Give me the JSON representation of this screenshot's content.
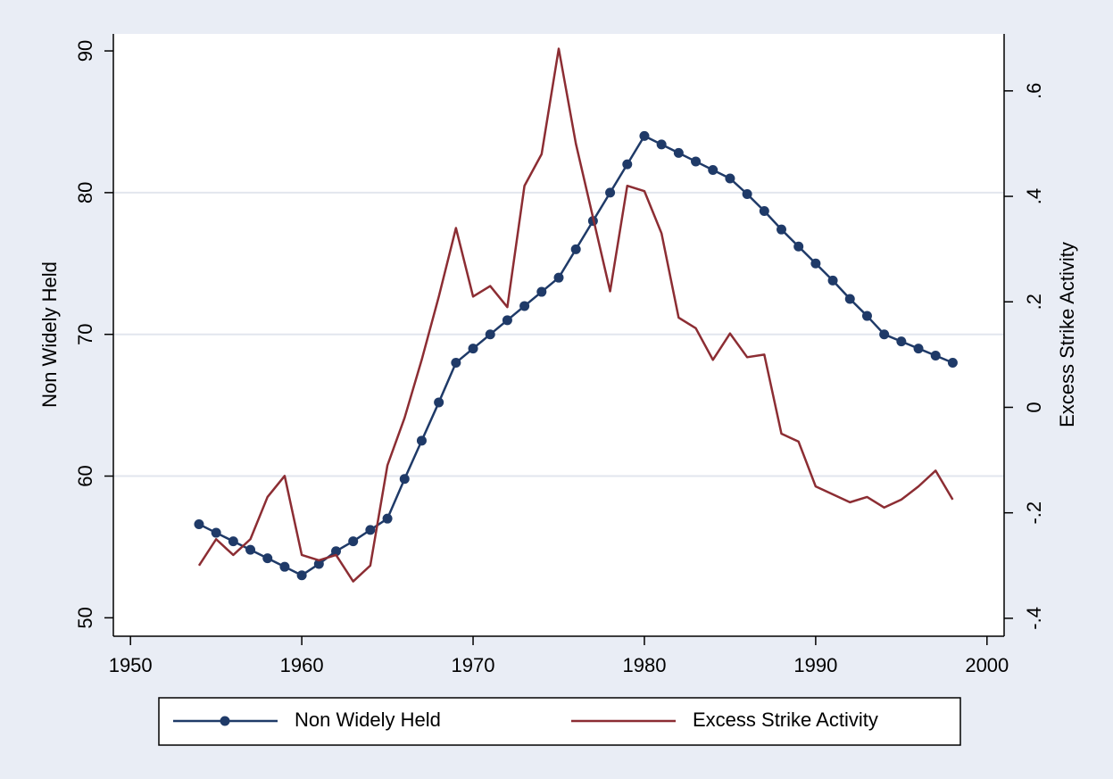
{
  "chart_data": {
    "type": "line",
    "x": [
      1954,
      1955,
      1956,
      1957,
      1958,
      1959,
      1960,
      1961,
      1962,
      1963,
      1964,
      1965,
      1966,
      1967,
      1968,
      1969,
      1970,
      1971,
      1972,
      1973,
      1974,
      1975,
      1976,
      1977,
      1978,
      1979,
      1980,
      1981,
      1982,
      1983,
      1984,
      1985,
      1986,
      1987,
      1988,
      1989,
      1990,
      1991,
      1992,
      1993,
      1994,
      1995,
      1996,
      1997,
      1998
    ],
    "series": [
      {
        "name": "Non Widely Held",
        "color": "#1f3a68",
        "markers": true,
        "values": [
          56.6,
          56.0,
          55.4,
          54.8,
          54.2,
          53.6,
          53.0,
          53.8,
          54.7,
          55.4,
          56.2,
          57.0,
          59.8,
          62.5,
          65.2,
          68.0,
          69.0,
          70.0,
          71.0,
          72.0,
          73.0,
          74.0,
          76.0,
          78.0,
          80.0,
          82.0,
          84.0,
          83.4,
          82.8,
          82.2,
          81.6,
          81.0,
          79.9,
          78.7,
          77.4,
          76.2,
          75.0,
          73.8,
          72.5,
          71.3,
          70.0,
          69.5,
          69.0,
          68.5,
          68.0
        ]
      },
      {
        "name": "Excess Strike Activity",
        "color": "#8c2d33",
        "axis": "y2",
        "markers": false,
        "values": [
          -0.3,
          -0.25,
          -0.28,
          -0.25,
          -0.17,
          -0.13,
          -0.28,
          -0.29,
          -0.28,
          -0.33,
          -0.3,
          -0.11,
          -0.02,
          0.09,
          0.21,
          0.34,
          0.21,
          0.23,
          0.19,
          0.42,
          0.48,
          0.68,
          0.5,
          0.36,
          0.22,
          0.42,
          0.41,
          0.33,
          0.17,
          0.15,
          0.09,
          0.14,
          0.095,
          0.1,
          -0.05,
          -0.065,
          -0.15,
          -0.165,
          -0.18,
          -0.17,
          -0.19,
          -0.175,
          -0.15,
          -0.12,
          -0.175
        ]
      }
    ],
    "y_label": "Non Widely Held",
    "y2_label": "Excess Strike Activity",
    "xlim": [
      1949,
      2001
    ],
    "xticks": [
      1950,
      1960,
      1970,
      1980,
      1990,
      2000
    ],
    "ylim": [
      48.7,
      91.2
    ],
    "yticks": [
      50,
      60,
      70,
      80,
      90
    ],
    "y2lim": [
      -0.434,
      0.708
    ],
    "y2ticks": [
      {
        "value": -0.4,
        "label": "-.4"
      },
      {
        "value": -0.2,
        "label": "-.2"
      },
      0,
      {
        "value": 0.2,
        "label": ".2"
      },
      {
        "value": 0.4,
        "label": ".4"
      },
      {
        "value": 0.6,
        "label": ".6"
      }
    ],
    "grid": true,
    "legend": "bottom"
  }
}
